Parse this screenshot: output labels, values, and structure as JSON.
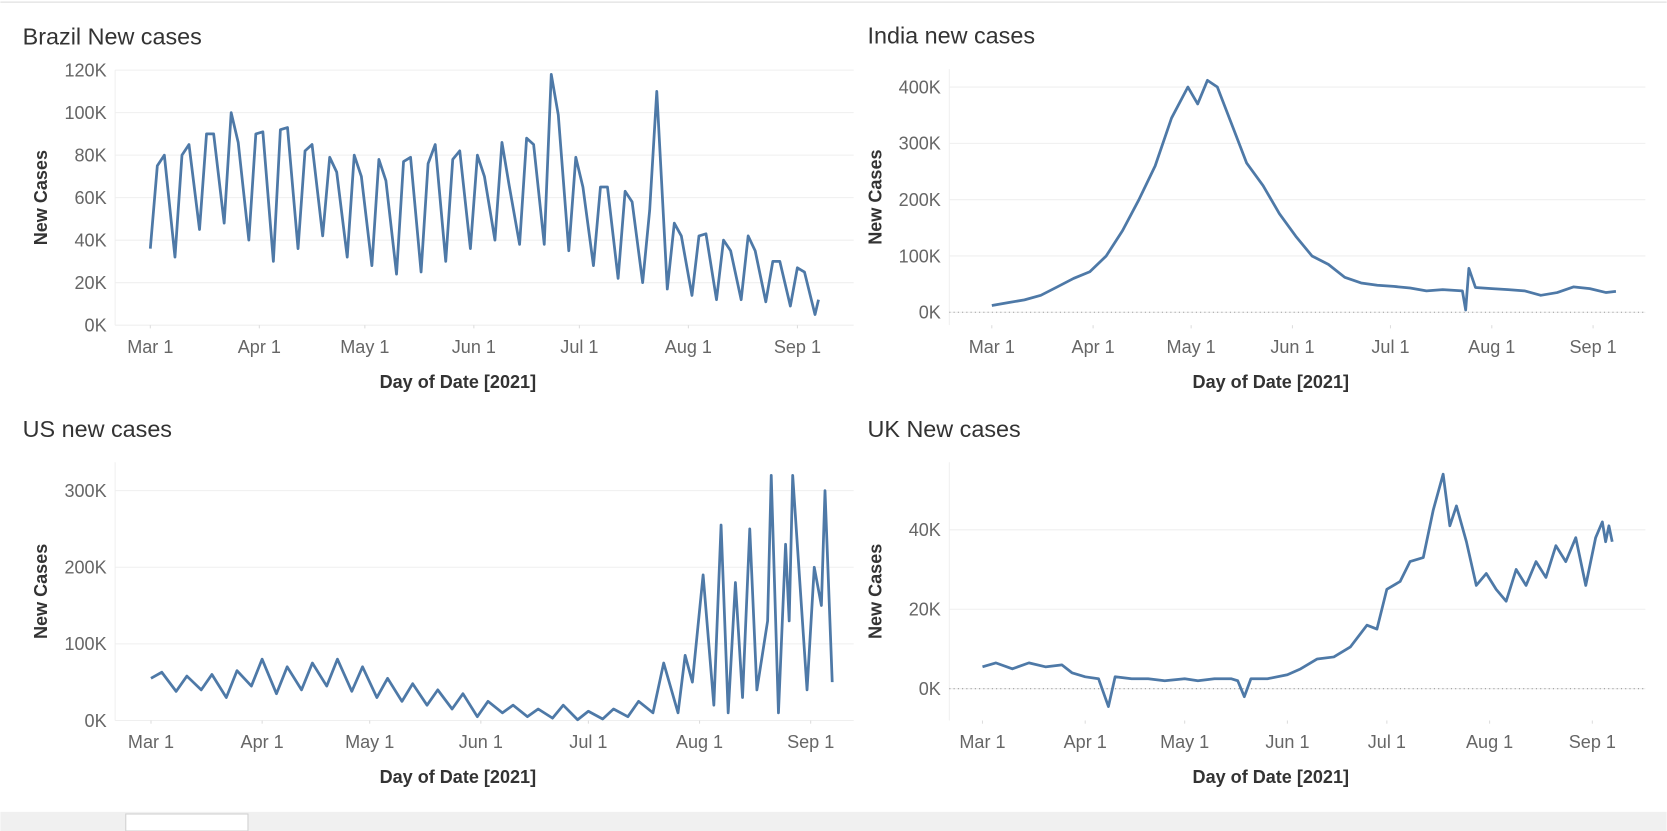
{
  "chart_data": [
    {
      "type": "line",
      "title": "Brazil New cases",
      "x_label": "Day of Date [2021]",
      "y_label": "New Cases",
      "color": "#4e79a7",
      "grid": true,
      "zero_line": false,
      "xlim": [
        "2021-02-19",
        "2021-09-17"
      ],
      "xticks": [
        {
          "value": "2021-03-01",
          "label": "Mar 1"
        },
        {
          "value": "2021-04-01",
          "label": "Apr 1"
        },
        {
          "value": "2021-05-01",
          "label": "May 1"
        },
        {
          "value": "2021-06-01",
          "label": "Jun 1"
        },
        {
          "value": "2021-07-01",
          "label": "Jul 1"
        },
        {
          "value": "2021-08-01",
          "label": "Aug 1"
        },
        {
          "value": "2021-09-01",
          "label": "Sep 1"
        }
      ],
      "ylim": [
        0,
        120000
      ],
      "yticks": [
        {
          "value": 0,
          "label": "0K"
        },
        {
          "value": 20000,
          "label": "20K"
        },
        {
          "value": 40000,
          "label": "40K"
        },
        {
          "value": 60000,
          "label": "60K"
        },
        {
          "value": 80000,
          "label": "80K"
        },
        {
          "value": 100000,
          "label": "100K"
        },
        {
          "value": 120000,
          "label": "120K"
        }
      ],
      "x": [
        "2021-03-01",
        "2021-03-03",
        "2021-03-05",
        "2021-03-08",
        "2021-03-10",
        "2021-03-12",
        "2021-03-15",
        "2021-03-17",
        "2021-03-19",
        "2021-03-22",
        "2021-03-24",
        "2021-03-26",
        "2021-03-29",
        "2021-03-31",
        "2021-04-02",
        "2021-04-05",
        "2021-04-07",
        "2021-04-09",
        "2021-04-12",
        "2021-04-14",
        "2021-04-16",
        "2021-04-19",
        "2021-04-21",
        "2021-04-23",
        "2021-04-26",
        "2021-04-28",
        "2021-04-30",
        "2021-05-03",
        "2021-05-05",
        "2021-05-07",
        "2021-05-10",
        "2021-05-12",
        "2021-05-14",
        "2021-05-17",
        "2021-05-19",
        "2021-05-21",
        "2021-05-24",
        "2021-05-26",
        "2021-05-28",
        "2021-05-31",
        "2021-06-02",
        "2021-06-04",
        "2021-06-07",
        "2021-06-09",
        "2021-06-11",
        "2021-06-14",
        "2021-06-16",
        "2021-06-18",
        "2021-06-21",
        "2021-06-23",
        "2021-06-25",
        "2021-06-28",
        "2021-06-30",
        "2021-07-02",
        "2021-07-05",
        "2021-07-07",
        "2021-07-09",
        "2021-07-12",
        "2021-07-14",
        "2021-07-16",
        "2021-07-19",
        "2021-07-21",
        "2021-07-23",
        "2021-07-26",
        "2021-07-28",
        "2021-07-30",
        "2021-08-02",
        "2021-08-04",
        "2021-08-06",
        "2021-08-09",
        "2021-08-11",
        "2021-08-13",
        "2021-08-16",
        "2021-08-18",
        "2021-08-20",
        "2021-08-23",
        "2021-08-25",
        "2021-08-27",
        "2021-08-30",
        "2021-09-01",
        "2021-09-03",
        "2021-09-06",
        "2021-09-07"
      ],
      "values": [
        36000,
        75000,
        80000,
        32000,
        80000,
        85000,
        45000,
        90000,
        90000,
        48000,
        100000,
        86000,
        40000,
        90000,
        91000,
        30000,
        92000,
        93000,
        36000,
        82000,
        85000,
        42000,
        79000,
        72000,
        32000,
        80000,
        70000,
        28000,
        78000,
        68000,
        24000,
        77000,
        79000,
        25000,
        76000,
        85000,
        30000,
        78000,
        82000,
        36000,
        80000,
        70000,
        40000,
        86000,
        66000,
        38000,
        88000,
        85000,
        38000,
        118000,
        99000,
        35000,
        79000,
        65000,
        28000,
        65000,
        65000,
        22000,
        63000,
        58000,
        20000,
        54000,
        110000,
        17000,
        48000,
        42000,
        14000,
        42000,
        43000,
        12000,
        40000,
        35000,
        12000,
        42000,
        35000,
        11000,
        30000,
        30000,
        9000,
        27000,
        25000,
        5000,
        12000
      ]
    },
    {
      "type": "line",
      "title": "India new cases",
      "x_label": "Day of Date [2021]",
      "y_label": "New Cases",
      "color": "#4e79a7",
      "grid": true,
      "zero_line": true,
      "xlim": [
        "2021-02-16",
        "2021-09-17"
      ],
      "xticks": [
        {
          "value": "2021-03-01",
          "label": "Mar 1"
        },
        {
          "value": "2021-04-01",
          "label": "Apr 1"
        },
        {
          "value": "2021-05-01",
          "label": "May 1"
        },
        {
          "value": "2021-06-01",
          "label": "Jun 1"
        },
        {
          "value": "2021-07-01",
          "label": "Jul 1"
        },
        {
          "value": "2021-08-01",
          "label": "Aug 1"
        },
        {
          "value": "2021-09-01",
          "label": "Sep 1"
        }
      ],
      "ylim": [
        -23000,
        432000
      ],
      "yticks": [
        {
          "value": 0,
          "label": "0K"
        },
        {
          "value": 100000,
          "label": "100K"
        },
        {
          "value": 200000,
          "label": "200K"
        },
        {
          "value": 300000,
          "label": "300K"
        },
        {
          "value": 400000,
          "label": "400K"
        }
      ],
      "x": [
        "2021-03-01",
        "2021-03-06",
        "2021-03-11",
        "2021-03-16",
        "2021-03-21",
        "2021-03-26",
        "2021-03-31",
        "2021-04-05",
        "2021-04-10",
        "2021-04-15",
        "2021-04-20",
        "2021-04-25",
        "2021-04-30",
        "2021-05-03",
        "2021-05-06",
        "2021-05-09",
        "2021-05-13",
        "2021-05-18",
        "2021-05-23",
        "2021-05-28",
        "2021-06-02",
        "2021-06-07",
        "2021-06-12",
        "2021-06-17",
        "2021-06-22",
        "2021-06-27",
        "2021-07-02",
        "2021-07-07",
        "2021-07-12",
        "2021-07-17",
        "2021-07-23",
        "2021-07-24",
        "2021-07-25",
        "2021-07-27",
        "2021-08-01",
        "2021-08-06",
        "2021-08-11",
        "2021-08-16",
        "2021-08-21",
        "2021-08-26",
        "2021-08-31",
        "2021-09-05",
        "2021-09-08"
      ],
      "values": [
        12000,
        17000,
        22000,
        30000,
        45000,
        60000,
        72000,
        100000,
        145000,
        200000,
        260000,
        345000,
        400000,
        370000,
        412000,
        400000,
        340000,
        265000,
        225000,
        175000,
        135000,
        100000,
        85000,
        62000,
        52000,
        48000,
        46000,
        43000,
        38000,
        40000,
        38000,
        4000,
        78000,
        44000,
        42000,
        40000,
        38000,
        30000,
        35000,
        45000,
        42000,
        35000,
        37000
      ]
    },
    {
      "type": "line",
      "title": "US new cases",
      "x_label": "Day of Date [2021]",
      "y_label": "New Cases",
      "color": "#4e79a7",
      "grid": true,
      "zero_line": false,
      "xlim": [
        "2021-02-19",
        "2021-09-13"
      ],
      "xticks": [
        {
          "value": "2021-03-01",
          "label": "Mar 1"
        },
        {
          "value": "2021-04-01",
          "label": "Apr 1"
        },
        {
          "value": "2021-05-01",
          "label": "May 1"
        },
        {
          "value": "2021-06-01",
          "label": "Jun 1"
        },
        {
          "value": "2021-07-01",
          "label": "Jul 1"
        },
        {
          "value": "2021-08-01",
          "label": "Aug 1"
        },
        {
          "value": "2021-09-01",
          "label": "Sep 1"
        }
      ],
      "ylim": [
        0,
        337000
      ],
      "yticks": [
        {
          "value": 0,
          "label": "0K"
        },
        {
          "value": 100000,
          "label": "100K"
        },
        {
          "value": 200000,
          "label": "200K"
        },
        {
          "value": 300000,
          "label": "300K"
        }
      ],
      "x": [
        "2021-03-01",
        "2021-03-04",
        "2021-03-08",
        "2021-03-11",
        "2021-03-15",
        "2021-03-18",
        "2021-03-22",
        "2021-03-25",
        "2021-03-29",
        "2021-04-01",
        "2021-04-05",
        "2021-04-08",
        "2021-04-12",
        "2021-04-15",
        "2021-04-19",
        "2021-04-22",
        "2021-04-26",
        "2021-04-29",
        "2021-05-03",
        "2021-05-06",
        "2021-05-10",
        "2021-05-13",
        "2021-05-17",
        "2021-05-20",
        "2021-05-24",
        "2021-05-27",
        "2021-05-31",
        "2021-06-03",
        "2021-06-07",
        "2021-06-10",
        "2021-06-14",
        "2021-06-17",
        "2021-06-21",
        "2021-06-24",
        "2021-06-28",
        "2021-07-01",
        "2021-07-05",
        "2021-07-08",
        "2021-07-12",
        "2021-07-15",
        "2021-07-19",
        "2021-07-22",
        "2021-07-26",
        "2021-07-28",
        "2021-07-30",
        "2021-08-02",
        "2021-08-05",
        "2021-08-07",
        "2021-08-09",
        "2021-08-11",
        "2021-08-13",
        "2021-08-15",
        "2021-08-17",
        "2021-08-20",
        "2021-08-21",
        "2021-08-23",
        "2021-08-25",
        "2021-08-26",
        "2021-08-27",
        "2021-08-31",
        "2021-09-02",
        "2021-09-04",
        "2021-09-05",
        "2021-09-07"
      ],
      "values": [
        55000,
        63000,
        38000,
        58000,
        40000,
        60000,
        30000,
        65000,
        45000,
        80000,
        35000,
        70000,
        40000,
        75000,
        45000,
        80000,
        38000,
        70000,
        30000,
        55000,
        25000,
        48000,
        20000,
        40000,
        15000,
        35000,
        5000,
        25000,
        10000,
        20000,
        5000,
        15000,
        3000,
        20000,
        1000,
        12000,
        2000,
        15000,
        5000,
        25000,
        10000,
        75000,
        10000,
        85000,
        50000,
        190000,
        20000,
        255000,
        10000,
        180000,
        30000,
        250000,
        40000,
        130000,
        320000,
        10000,
        230000,
        130000,
        320000,
        40000,
        200000,
        150000,
        300000,
        50000
      ]
    },
    {
      "type": "line",
      "title": "UK New cases",
      "x_label": "Day of Date [2021]",
      "y_label": "New Cases",
      "color": "#4e79a7",
      "grid": true,
      "zero_line": true,
      "xlim": [
        "2021-02-19",
        "2021-09-17"
      ],
      "xticks": [
        {
          "value": "2021-03-01",
          "label": "Mar 1"
        },
        {
          "value": "2021-04-01",
          "label": "Apr 1"
        },
        {
          "value": "2021-05-01",
          "label": "May 1"
        },
        {
          "value": "2021-06-01",
          "label": "Jun 1"
        },
        {
          "value": "2021-07-01",
          "label": "Jul 1"
        },
        {
          "value": "2021-08-01",
          "label": "Aug 1"
        },
        {
          "value": "2021-09-01",
          "label": "Sep 1"
        }
      ],
      "ylim": [
        -8000,
        57000
      ],
      "yticks": [
        {
          "value": 0,
          "label": "0K"
        },
        {
          "value": 20000,
          "label": "20K"
        },
        {
          "value": 40000,
          "label": "40K"
        }
      ],
      "x": [
        "2021-03-01",
        "2021-03-05",
        "2021-03-10",
        "2021-03-15",
        "2021-03-20",
        "2021-03-25",
        "2021-03-28",
        "2021-04-01",
        "2021-04-05",
        "2021-04-08",
        "2021-04-10",
        "2021-04-15",
        "2021-04-20",
        "2021-04-25",
        "2021-05-01",
        "2021-05-05",
        "2021-05-10",
        "2021-05-15",
        "2021-05-17",
        "2021-05-19",
        "2021-05-21",
        "2021-05-26",
        "2021-06-01",
        "2021-06-05",
        "2021-06-10",
        "2021-06-15",
        "2021-06-20",
        "2021-06-25",
        "2021-06-28",
        "2021-07-01",
        "2021-07-05",
        "2021-07-08",
        "2021-07-12",
        "2021-07-15",
        "2021-07-18",
        "2021-07-20",
        "2021-07-22",
        "2021-07-25",
        "2021-07-28",
        "2021-07-31",
        "2021-08-03",
        "2021-08-06",
        "2021-08-09",
        "2021-08-12",
        "2021-08-15",
        "2021-08-18",
        "2021-08-21",
        "2021-08-24",
        "2021-08-27",
        "2021-08-30",
        "2021-09-02",
        "2021-09-04",
        "2021-09-05",
        "2021-09-06",
        "2021-09-07"
      ],
      "values": [
        5500,
        6500,
        5000,
        6500,
        5500,
        6000,
        4000,
        3000,
        2500,
        -4500,
        3000,
        2500,
        2500,
        2000,
        2500,
        2000,
        2500,
        2500,
        2000,
        -2000,
        2500,
        2500,
        3500,
        5000,
        7500,
        8000,
        10500,
        16000,
        15000,
        25000,
        27000,
        32000,
        33000,
        45000,
        54000,
        41000,
        46000,
        37000,
        26000,
        29000,
        25000,
        22000,
        30000,
        26000,
        32000,
        28000,
        36000,
        32000,
        38000,
        26000,
        38000,
        42000,
        37000,
        41000,
        37000
      ]
    }
  ]
}
